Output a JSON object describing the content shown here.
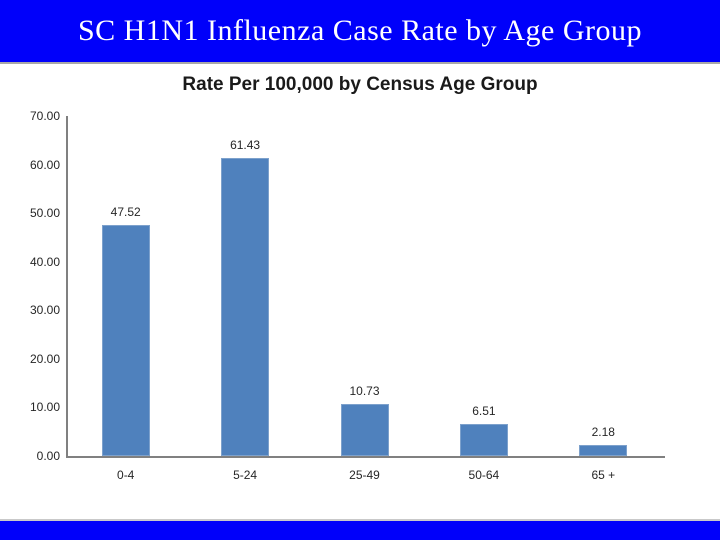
{
  "slide": {
    "title": "SC H1N1 Influenza Case Rate by Age Group",
    "header_bg": "#0000FA",
    "header_text_color": "#FFFFFF",
    "footer_bg": "#0000FA"
  },
  "chart_data": {
    "type": "bar",
    "title": "Rate Per 100,000 by Census Age Group",
    "categories": [
      "0-4",
      "5-24",
      "25-49",
      "50-64",
      "65 +"
    ],
    "values": [
      47.52,
      61.43,
      10.73,
      6.51,
      2.18
    ],
    "data_labels": [
      "47.52",
      "61.43",
      "10.73",
      "6.51",
      "2.18"
    ],
    "xlabel": "",
    "ylabel": "",
    "ylim": [
      0,
      70
    ],
    "y_ticks": [
      {
        "label": "70.00",
        "value": 70
      },
      {
        "label": "60.00",
        "value": 60
      },
      {
        "label": "50.00",
        "value": 50
      },
      {
        "label": "40.00",
        "value": 40
      },
      {
        "label": "30.00",
        "value": 30
      },
      {
        "label": "20.00",
        "value": 20
      },
      {
        "label": "10.00",
        "value": 10
      },
      {
        "label": "0.00",
        "value": 0
      }
    ],
    "grid": false,
    "legend": "none",
    "bar_color": "#4F81BD",
    "bar_border_color": "#7DA1CC",
    "axis_color": "#808080",
    "label_color": "#262626",
    "title_color": "#1A1A1A"
  }
}
